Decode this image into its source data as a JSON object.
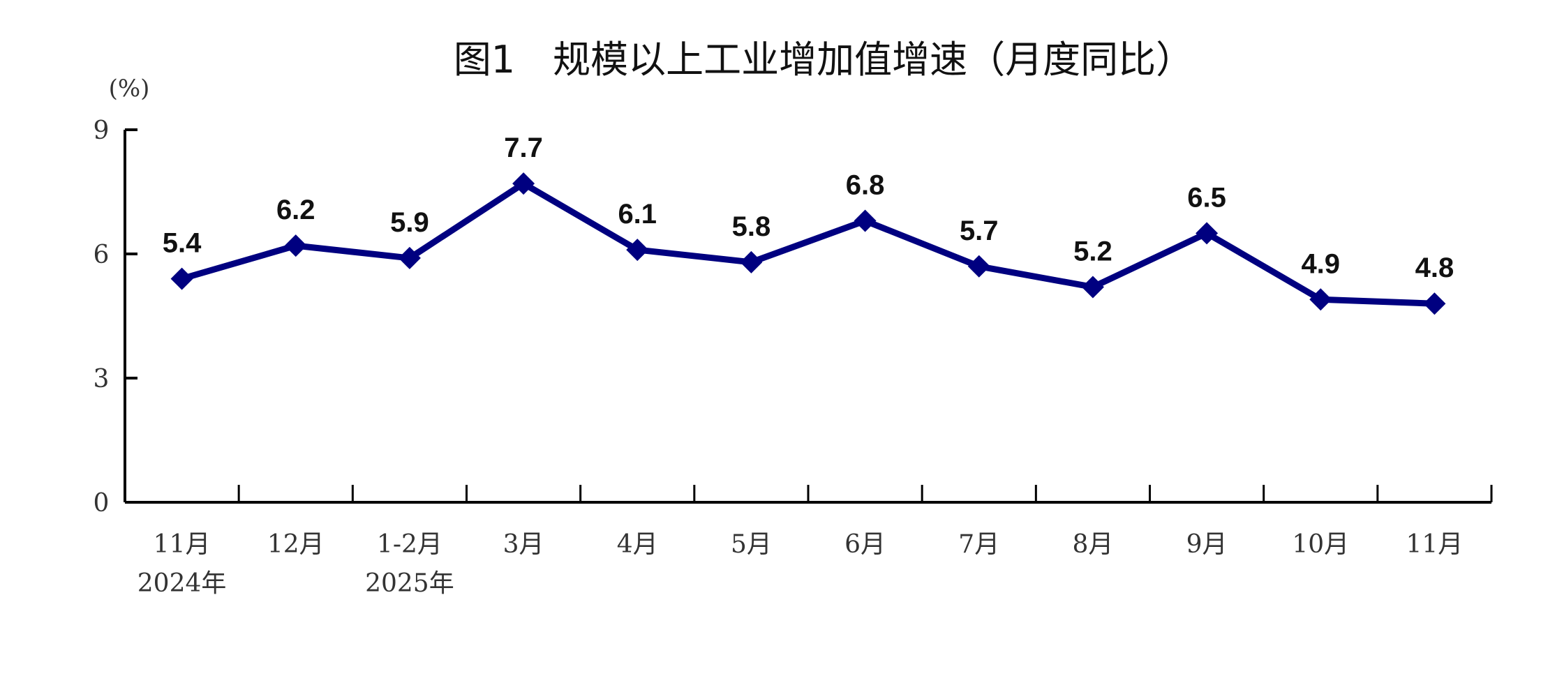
{
  "chart_data": {
    "type": "line",
    "title": "图1　规模以上工业增加值增速（月度同比）",
    "ylabel": "(%)",
    "xlabel": "",
    "categories": [
      "11月",
      "12月",
      "1-2月",
      "3月",
      "4月",
      "5月",
      "6月",
      "7月",
      "8月",
      "9月",
      "10月",
      "11月"
    ],
    "category_sublabels": [
      "2024年",
      "",
      "2025年",
      "",
      "",
      "",
      "",
      "",
      "",
      "",
      "",
      ""
    ],
    "values": [
      5.4,
      6.2,
      5.9,
      7.7,
      6.1,
      5.8,
      6.8,
      5.7,
      5.2,
      6.5,
      4.9,
      4.8
    ],
    "data_labels": [
      "5.4",
      "6.2",
      "5.9",
      "7.7",
      "6.1",
      "5.8",
      "6.8",
      "5.7",
      "5.2",
      "6.5",
      "4.9",
      "4.8"
    ],
    "ylim": [
      0,
      9
    ],
    "yticks": [
      "0",
      "3",
      "6",
      "9"
    ],
    "grid": false,
    "marker": "diamond",
    "line_color": "#000080"
  }
}
